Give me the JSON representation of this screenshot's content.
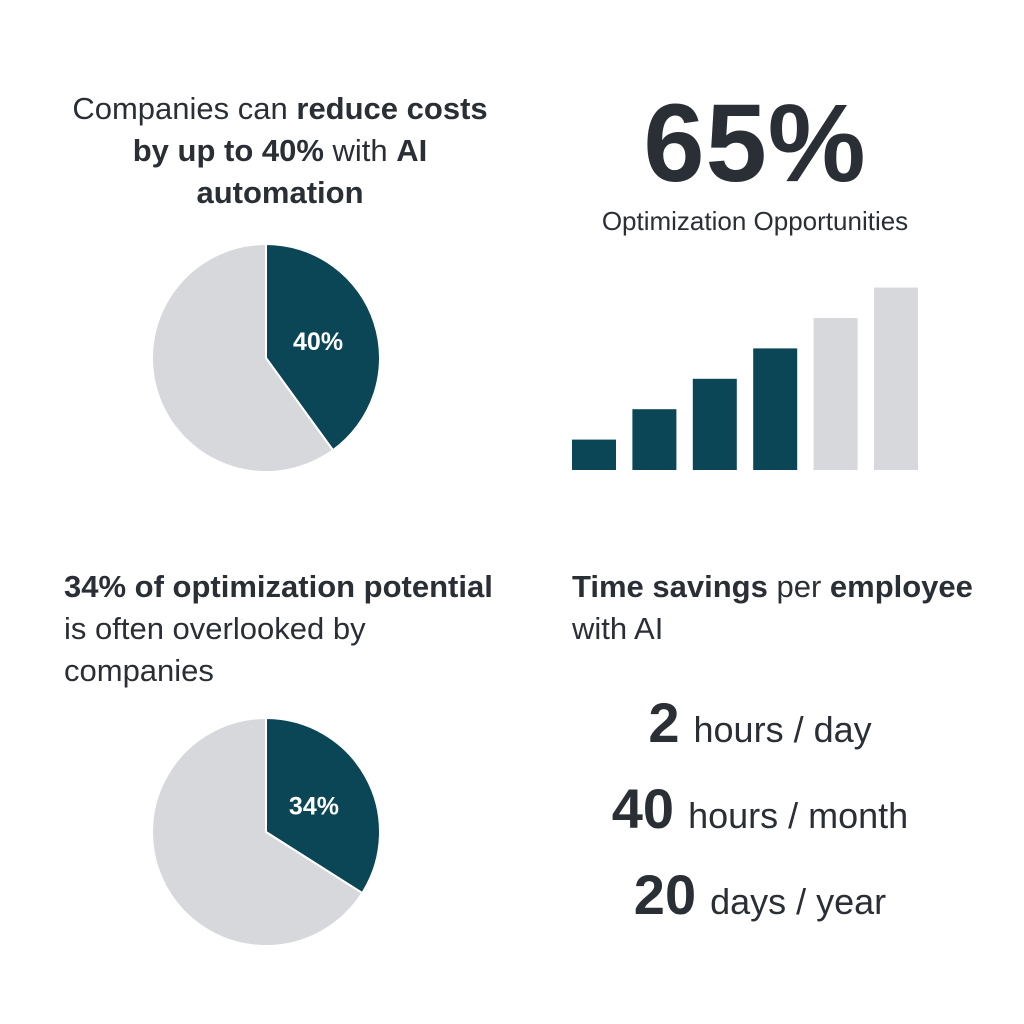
{
  "colors": {
    "accent": "#0b4656",
    "muted": "#d6d8dc",
    "text": "#2a2f36",
    "background": "#ffffff"
  },
  "panel_tl": {
    "heading_parts": [
      {
        "text": "Companies can ",
        "bold": false
      },
      {
        "text": "reduce costs by up to 40%",
        "bold": true
      },
      {
        "text": " with ",
        "bold": false
      },
      {
        "text": "AI automation",
        "bold": true
      }
    ]
  },
  "panel_tr": {
    "big_value": "65%",
    "big_label": "Optimization Opportunities"
  },
  "panel_bl": {
    "heading_parts": [
      {
        "text": "34% of optimization potential",
        "bold": true
      },
      {
        "text": " is often overlooked by companies",
        "bold": false
      }
    ]
  },
  "panel_br": {
    "heading_parts": [
      {
        "text": "Time savings",
        "bold": true
      },
      {
        "text": " per ",
        "bold": false
      },
      {
        "text": "employee",
        "bold": true
      },
      {
        "text": " with AI",
        "bold": false
      }
    ],
    "savings": [
      {
        "value": "2",
        "unit": "hours / day"
      },
      {
        "value": "40",
        "unit": "hours / month"
      },
      {
        "value": "20",
        "unit": "days / year"
      }
    ]
  },
  "chart_data": [
    {
      "type": "pie",
      "labels": [
        "40%",
        ""
      ],
      "values": [
        40,
        60
      ],
      "colors": [
        "#0b4656",
        "#d6d8dc"
      ]
    },
    {
      "type": "bar",
      "values": [
        1,
        2,
        3,
        4,
        5,
        6
      ],
      "highlighted": [
        true,
        true,
        true,
        true,
        false,
        false
      ],
      "colors": [
        "#0b4656",
        "#d6d8dc"
      ]
    },
    {
      "type": "pie",
      "labels": [
        "34%",
        ""
      ],
      "values": [
        34,
        66
      ],
      "colors": [
        "#0b4656",
        "#d6d8dc"
      ]
    }
  ]
}
